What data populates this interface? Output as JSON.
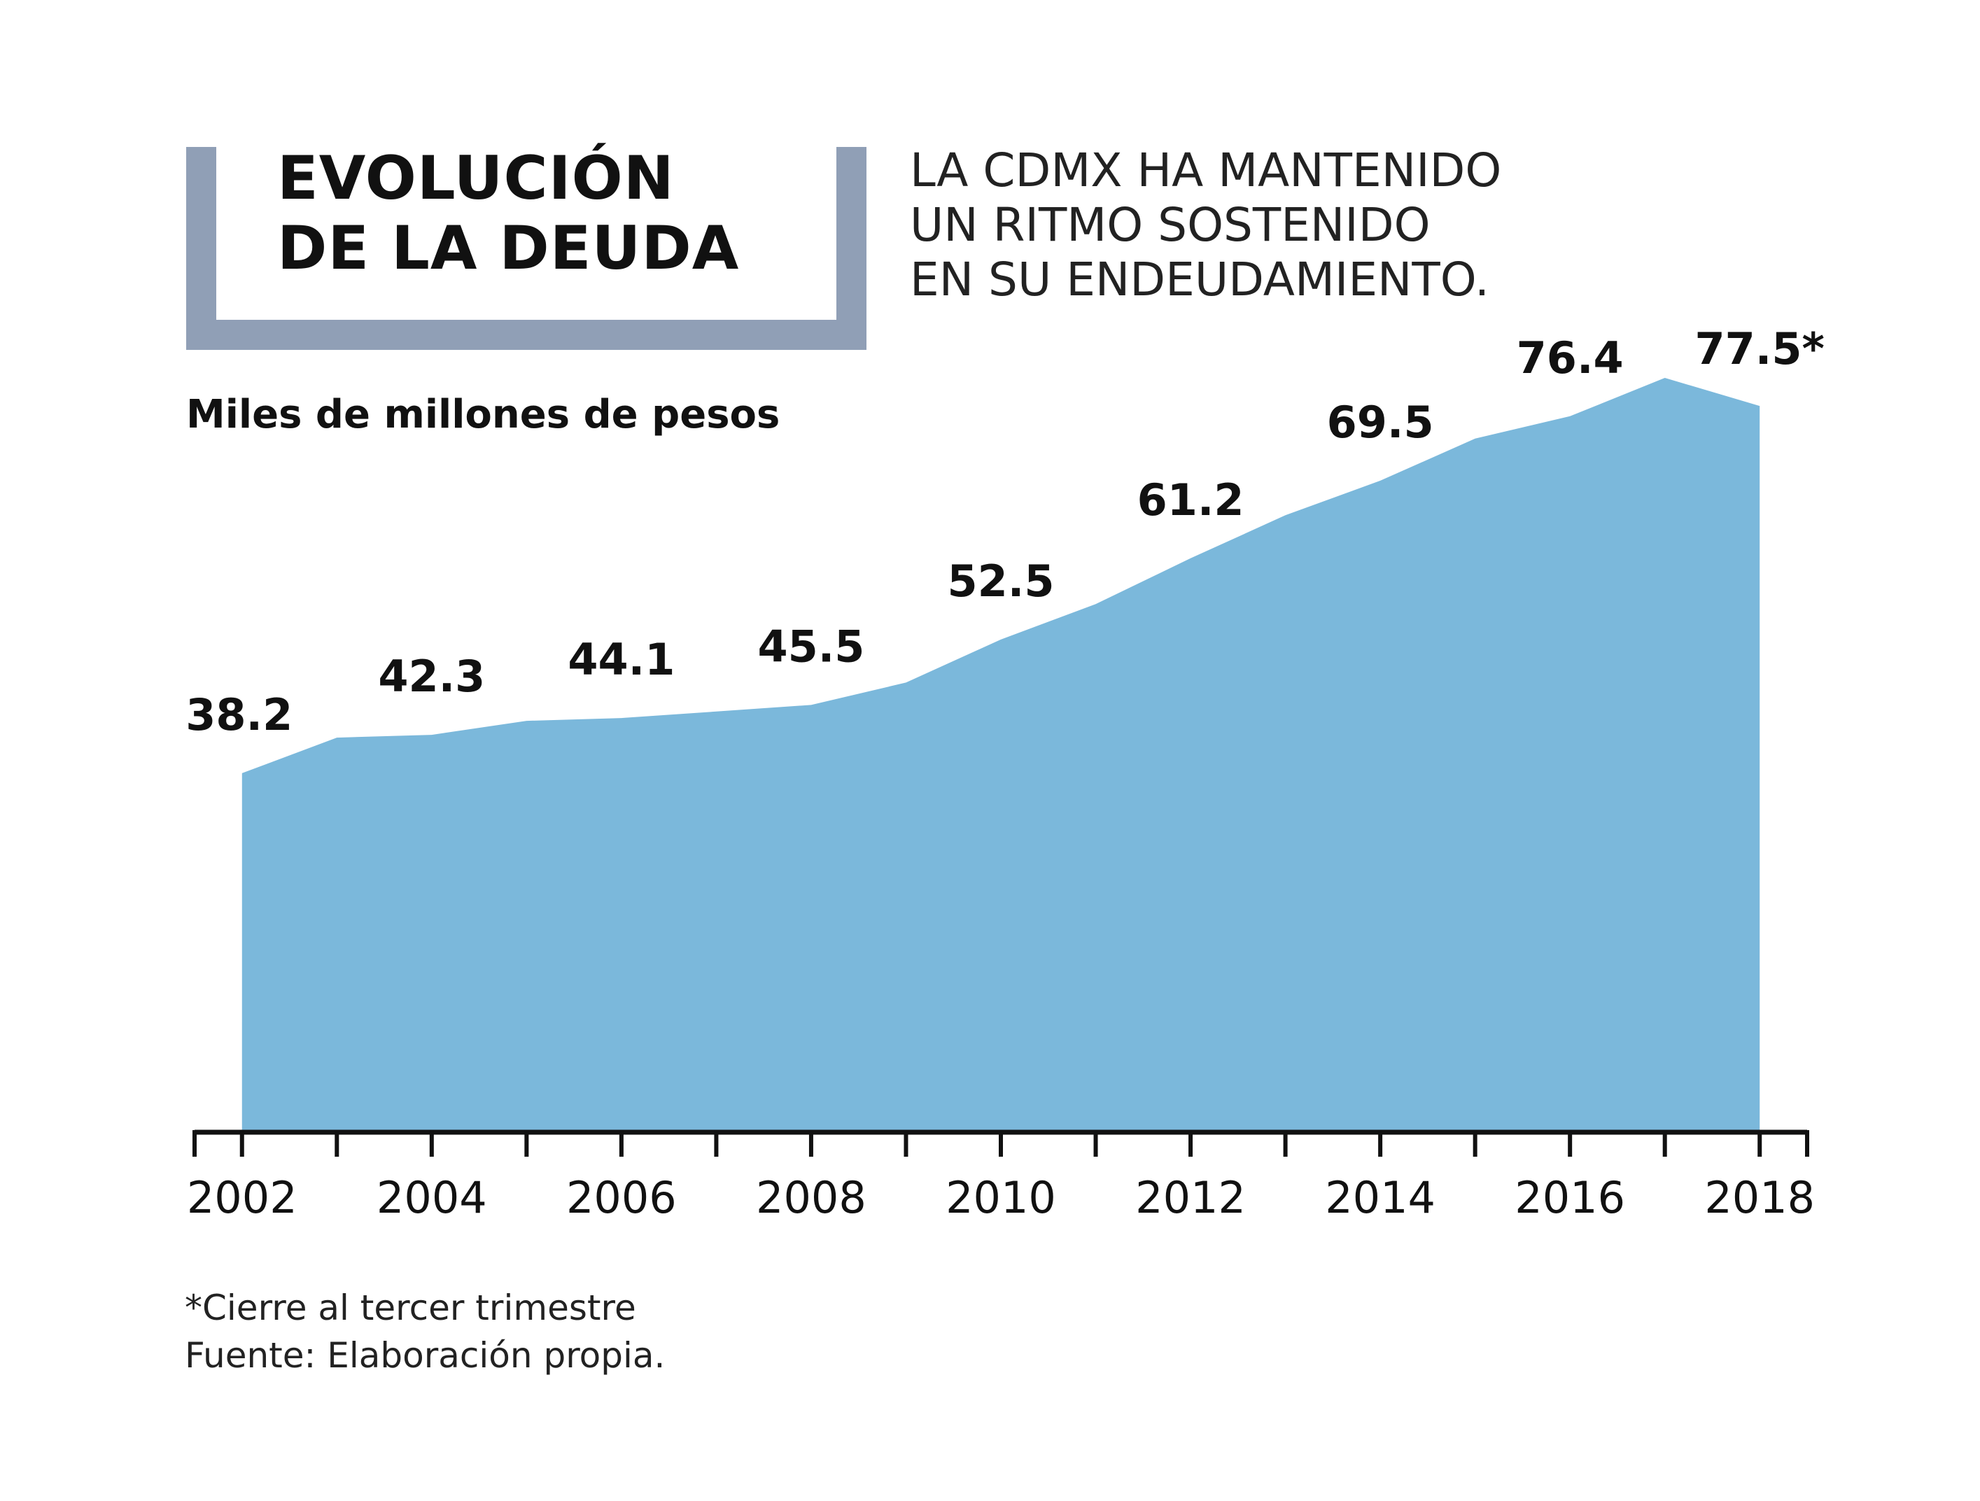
{
  "header": {
    "title_line1": "EVOLUCIÓN",
    "title_line2": "DE LA DEUDA",
    "subtitle_lines": [
      "LA CDMX HA MANTENIDO",
      "UN RITMO SOSTENIDO",
      "EN SU ENDEUDAMIENTO."
    ],
    "frame_color": "#909fb6"
  },
  "chart_data": {
    "type": "area",
    "title": "EVOLUCIÓN DE LA DEUDA",
    "ylabel": "Miles de millones de pesos",
    "xlabel": "",
    "color": "#7bb8db",
    "x": [
      2002,
      2003,
      2004,
      2005,
      2006,
      2007,
      2008,
      2009,
      2010,
      2011,
      2012,
      2013,
      2014,
      2015,
      2016,
      2017,
      2018
    ],
    "values": [
      38.2,
      42.0,
      42.3,
      43.8,
      44.1,
      44.8,
      45.5,
      47.9,
      52.5,
      56.3,
      61.2,
      65.8,
      69.5,
      74.0,
      76.4,
      80.5,
      77.5
    ],
    "x_tick_labels": [
      "2002",
      "2004",
      "2006",
      "2008",
      "2010",
      "2012",
      "2014",
      "2016",
      "2018"
    ],
    "data_labels": [
      {
        "year": 2002,
        "text": "38.2"
      },
      {
        "year": 2004,
        "text": "42.3"
      },
      {
        "year": 2006,
        "text": "44.1"
      },
      {
        "year": 2008,
        "text": "45.5"
      },
      {
        "year": 2010,
        "text": "52.5"
      },
      {
        "year": 2012,
        "text": "61.2"
      },
      {
        "year": 2014,
        "text": "69.5"
      },
      {
        "year": 2016,
        "text": "76.4"
      },
      {
        "year": 2018,
        "text": "77.5*"
      }
    ],
    "ylim": [
      0,
      82
    ],
    "xlim": [
      2001.5,
      2018.5
    ],
    "grid": false
  },
  "footnotes": [
    "*Cierre al tercer trimestre",
    "Fuente: Elaboración propia."
  ]
}
